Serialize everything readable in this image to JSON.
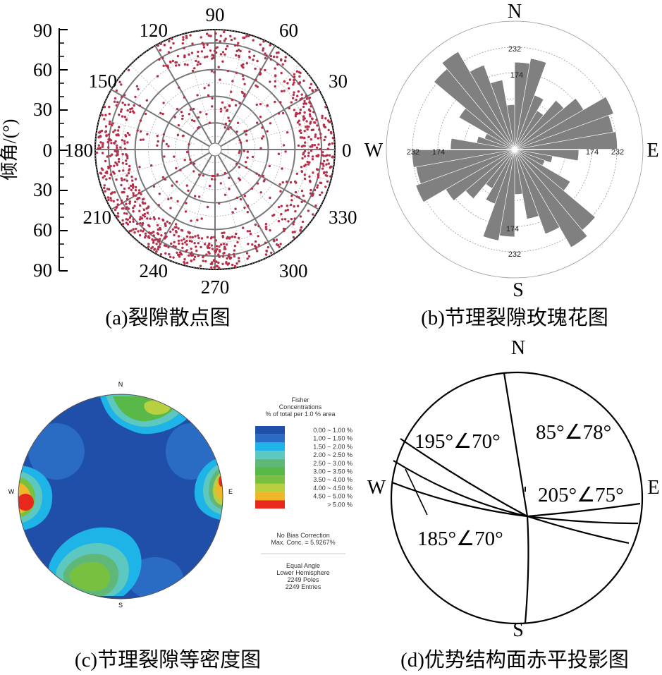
{
  "panel_a": {
    "caption": "(a)裂隙散点图",
    "axis_label": "倾角/(°)",
    "dip_ticks": [
      "90",
      "60",
      "30",
      "0",
      "30",
      "60",
      "90"
    ],
    "azimuth_labels": [
      "0",
      "30",
      "60",
      "90",
      "120",
      "150",
      "180",
      "210",
      "240",
      "270",
      "300",
      "330"
    ],
    "point_color": "#b5304a"
  },
  "panel_b": {
    "caption": "(b)节理裂隙玫瑰花图",
    "directions": {
      "n": "N",
      "s": "S",
      "e": "E",
      "w": "W"
    },
    "ring_labels": {
      "north_outer": "232",
      "north_inner": "174",
      "south_outer": "232",
      "south_inner": "174",
      "east_outer": "232",
      "east_inner": "174",
      "west_outer": "232",
      "west_inner": "174"
    },
    "petal_color": "#808080"
  },
  "panel_c": {
    "caption": "(c)节理裂隙等密度图",
    "directions": {
      "n": "N",
      "s": "S",
      "e": "E",
      "w": "W"
    },
    "legend_title": [
      "Fisher",
      "Concentrations",
      "% of total per 1.0 % area"
    ],
    "legend_bins": [
      {
        "label": "0.00 ~  1.00 %",
        "color": "#1f4fa8"
      },
      {
        "label": "1.00 ~  1.50 %",
        "color": "#2a6bc4"
      },
      {
        "label": "1.50 ~  2.00 %",
        "color": "#1fb4e8"
      },
      {
        "label": "2.00 ~  2.50 %",
        "color": "#5cc8c0"
      },
      {
        "label": "2.50 ~  3.00 %",
        "color": "#60b878"
      },
      {
        "label": "3.00 ~  3.50 %",
        "color": "#58b848"
      },
      {
        "label": "3.50 ~  4.00 %",
        "color": "#78c040"
      },
      {
        "label": "4.00 ~  4.50 %",
        "color": "#b8d040"
      },
      {
        "label": "4.50 ~  5.00 %",
        "color": "#f0b828"
      },
      {
        "label": "> 5.00 %",
        "color": "#e8281c"
      }
    ],
    "notes": [
      "No Bias Correction",
      "Max. Conc. = 5.9267%"
    ],
    "projection": [
      "Equal Angle",
      "Lower Hemisphere",
      "2249 Poles",
      "2249 Entries"
    ]
  },
  "panel_d": {
    "caption": "(d)优势结构面赤平投影图",
    "directions": {
      "n": "N",
      "s": "S",
      "e": "E",
      "w": "W"
    },
    "planes": [
      {
        "label": "195°∠70°"
      },
      {
        "label": "85°∠78°"
      },
      {
        "label": "205°∠75°"
      },
      {
        "label": "185°∠70°"
      }
    ]
  }
}
